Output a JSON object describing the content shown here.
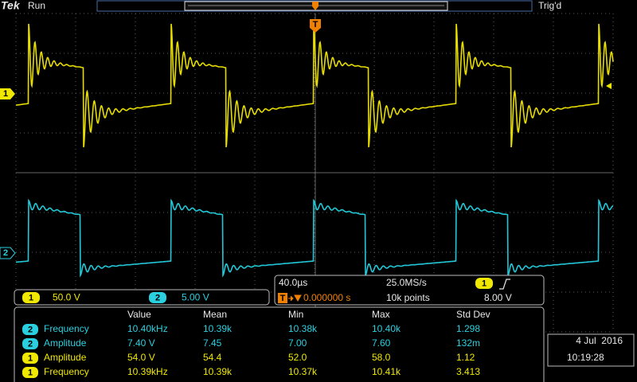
{
  "header": {
    "logo": "Tek",
    "status": "Run",
    "trigger_state": "Trig'd"
  },
  "trigger_marker": "T",
  "channels": [
    {
      "number": "1",
      "scale": "50.0 V"
    },
    {
      "number": "2",
      "scale": "5.00 V"
    }
  ],
  "horizontal": {
    "scale": "40.0µs",
    "sample_rate": "25.0MS/s",
    "position": "0.000000 s",
    "record_length": "10k points"
  },
  "trigger": {
    "source": "1",
    "level": "8.00 V"
  },
  "measurements": {
    "headers": [
      "Value",
      "Mean",
      "Min",
      "Max",
      "Std Dev"
    ],
    "rows": [
      {
        "channel": "2",
        "name": "Frequency",
        "cells": [
          "10.40kHz",
          "10.39k",
          "10.38k",
          "10.40k",
          "1.298"
        ]
      },
      {
        "channel": "2",
        "name": "Amplitude",
        "cells": [
          "7.40 V",
          "7.45",
          "7.00",
          "7.60",
          "132m"
        ]
      },
      {
        "channel": "1",
        "name": "Amplitude",
        "cells": [
          "54.0 V",
          "54.4",
          "52.0",
          "58.0",
          "1.12"
        ]
      },
      {
        "channel": "1",
        "name": "Frequency",
        "cells": [
          "10.39kHz",
          "10.39k",
          "10.37k",
          "10.41k",
          "3.413"
        ]
      }
    ]
  },
  "datetime": {
    "date": "4 Jul  2016",
    "time": "10:19:28"
  }
}
